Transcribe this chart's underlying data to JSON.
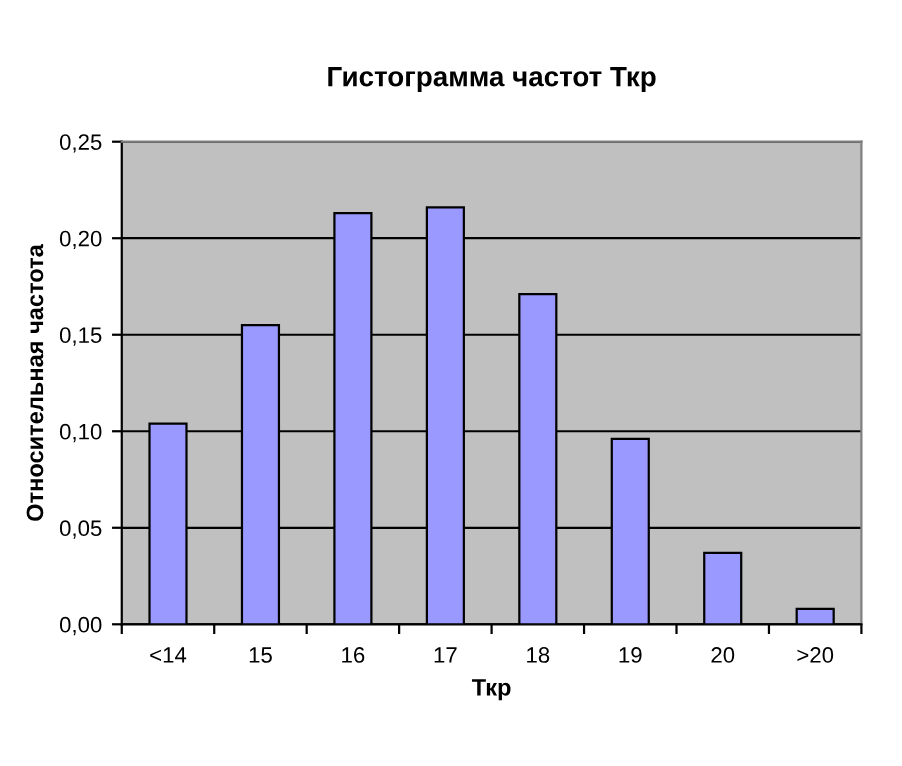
{
  "chart_data": {
    "type": "bar",
    "title": "Гистограмма частот Ткр",
    "xlabel": "Ткр",
    "ylabel": "Относительная частота",
    "categories": [
      "<14",
      "15",
      "16",
      "17",
      "18",
      "19",
      "20",
      ">20"
    ],
    "values": [
      0.104,
      0.155,
      0.213,
      0.216,
      0.171,
      0.096,
      0.037,
      0.008
    ],
    "color": "#9999ff",
    "ylim": [
      0,
      0.25
    ],
    "yticks": [
      {
        "value": 0,
        "label": "0,00"
      },
      {
        "value": 0.05,
        "label": "0,05"
      },
      {
        "value": 0.1,
        "label": "0,10"
      },
      {
        "value": 0.15,
        "label": "0,15"
      },
      {
        "value": 0.2,
        "label": "0,20"
      },
      {
        "value": 0.25,
        "label": "0,25"
      }
    ],
    "grid": "y",
    "legend": false
  }
}
